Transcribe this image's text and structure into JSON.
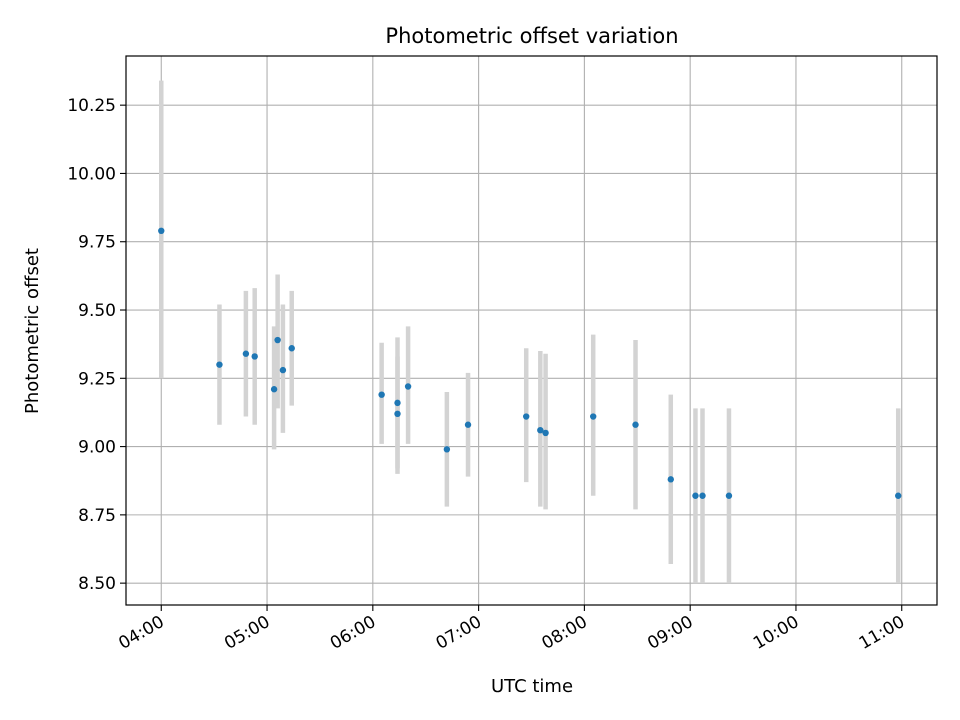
{
  "chart_data": {
    "type": "scatter",
    "title": "Photometric offset variation",
    "xlabel": "UTC time",
    "ylabel": "Photometric offset",
    "x_tick_labels": [
      "04:00",
      "05:00",
      "06:00",
      "07:00",
      "08:00",
      "09:00",
      "10:00",
      "11:00"
    ],
    "y_tick_labels": [
      "8.50",
      "8.75",
      "9.00",
      "9.25",
      "9.50",
      "9.75",
      "10.00",
      "10.25"
    ],
    "xlim": [
      "03:40",
      "11:20"
    ],
    "ylim": [
      8.42,
      10.43
    ],
    "grid": true,
    "colors": {
      "point": "#1f77b4",
      "errorbar": "#d3d3d3",
      "grid": "#b0b0b0"
    },
    "series": [
      {
        "points": [
          {
            "x": "04:00",
            "y": 9.79,
            "lo": 9.25,
            "hi": 10.34
          },
          {
            "x": "04:33",
            "y": 9.3,
            "lo": 9.08,
            "hi": 9.52
          },
          {
            "x": "04:48",
            "y": 9.34,
            "lo": 9.11,
            "hi": 9.57
          },
          {
            "x": "04:53",
            "y": 9.33,
            "lo": 9.08,
            "hi": 9.58
          },
          {
            "x": "05:04",
            "y": 9.21,
            "lo": 8.99,
            "hi": 9.44
          },
          {
            "x": "05:06",
            "y": 9.39,
            "lo": 9.14,
            "hi": 9.63
          },
          {
            "x": "05:09",
            "y": 9.28,
            "lo": 9.05,
            "hi": 9.52
          },
          {
            "x": "05:14",
            "y": 9.36,
            "lo": 9.15,
            "hi": 9.57
          },
          {
            "x": "06:05",
            "y": 9.19,
            "lo": 9.01,
            "hi": 9.38
          },
          {
            "x": "06:14",
            "y": 9.12,
            "lo": 8.9,
            "hi": 9.33
          },
          {
            "x": "06:14",
            "y": 9.16,
            "lo": 8.92,
            "hi": 9.4
          },
          {
            "x": "06:20",
            "y": 9.22,
            "lo": 9.01,
            "hi": 9.44
          },
          {
            "x": "06:42",
            "y": 8.99,
            "lo": 8.78,
            "hi": 9.2
          },
          {
            "x": "06:54",
            "y": 9.08,
            "lo": 8.89,
            "hi": 9.27
          },
          {
            "x": "07:27",
            "y": 9.11,
            "lo": 8.87,
            "hi": 9.36
          },
          {
            "x": "07:35",
            "y": 9.06,
            "lo": 8.78,
            "hi": 9.35
          },
          {
            "x": "07:38",
            "y": 9.05,
            "lo": 8.77,
            "hi": 9.34
          },
          {
            "x": "08:05",
            "y": 9.11,
            "lo": 8.82,
            "hi": 9.41
          },
          {
            "x": "08:29",
            "y": 9.08,
            "lo": 8.77,
            "hi": 9.39
          },
          {
            "x": "08:49",
            "y": 8.88,
            "lo": 8.57,
            "hi": 9.19
          },
          {
            "x": "09:03",
            "y": 8.82,
            "lo": 8.5,
            "hi": 9.14
          },
          {
            "x": "09:07",
            "y": 8.82,
            "lo": 8.5,
            "hi": 9.14
          },
          {
            "x": "09:22",
            "y": 8.82,
            "lo": 8.5,
            "hi": 9.14
          },
          {
            "x": "10:58",
            "y": 8.82,
            "lo": 8.5,
            "hi": 9.14
          }
        ]
      }
    ]
  }
}
